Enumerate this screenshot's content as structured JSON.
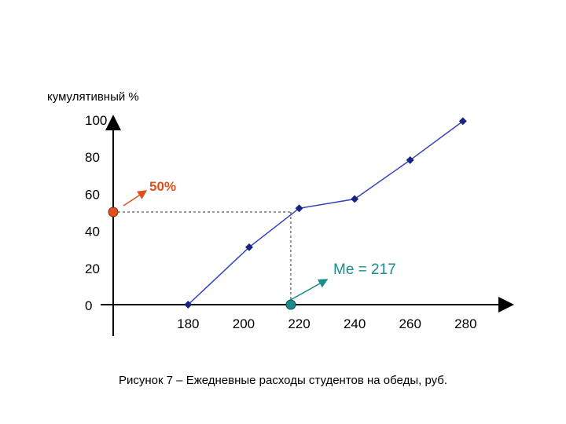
{
  "chart_data": {
    "type": "line",
    "ylabel": "кумулятивный %",
    "x_ticks": [
      180,
      200,
      220,
      240,
      260,
      280
    ],
    "y_ticks": [
      0,
      20,
      40,
      60,
      80,
      100
    ],
    "xlim": [
      153,
      285
    ],
    "ylim": [
      0,
      100
    ],
    "series": [
      {
        "x": [
          180,
          202,
          220,
          240,
          260,
          279
        ],
        "y": [
          0,
          31,
          52,
          57,
          78,
          99
        ]
      }
    ],
    "grid": false,
    "median": {
      "x": 217,
      "y": 50
    },
    "annotations": {
      "percent": "50%",
      "median": "Me = 217"
    },
    "colors": {
      "line": "#3344b8",
      "marker": "#1a237e",
      "percent": "#e0501e",
      "median": "#1a8c8c",
      "guide": "#333333"
    }
  },
  "caption": "Рисунок 7 – Ежедневные расходы студентов на обеды, руб."
}
